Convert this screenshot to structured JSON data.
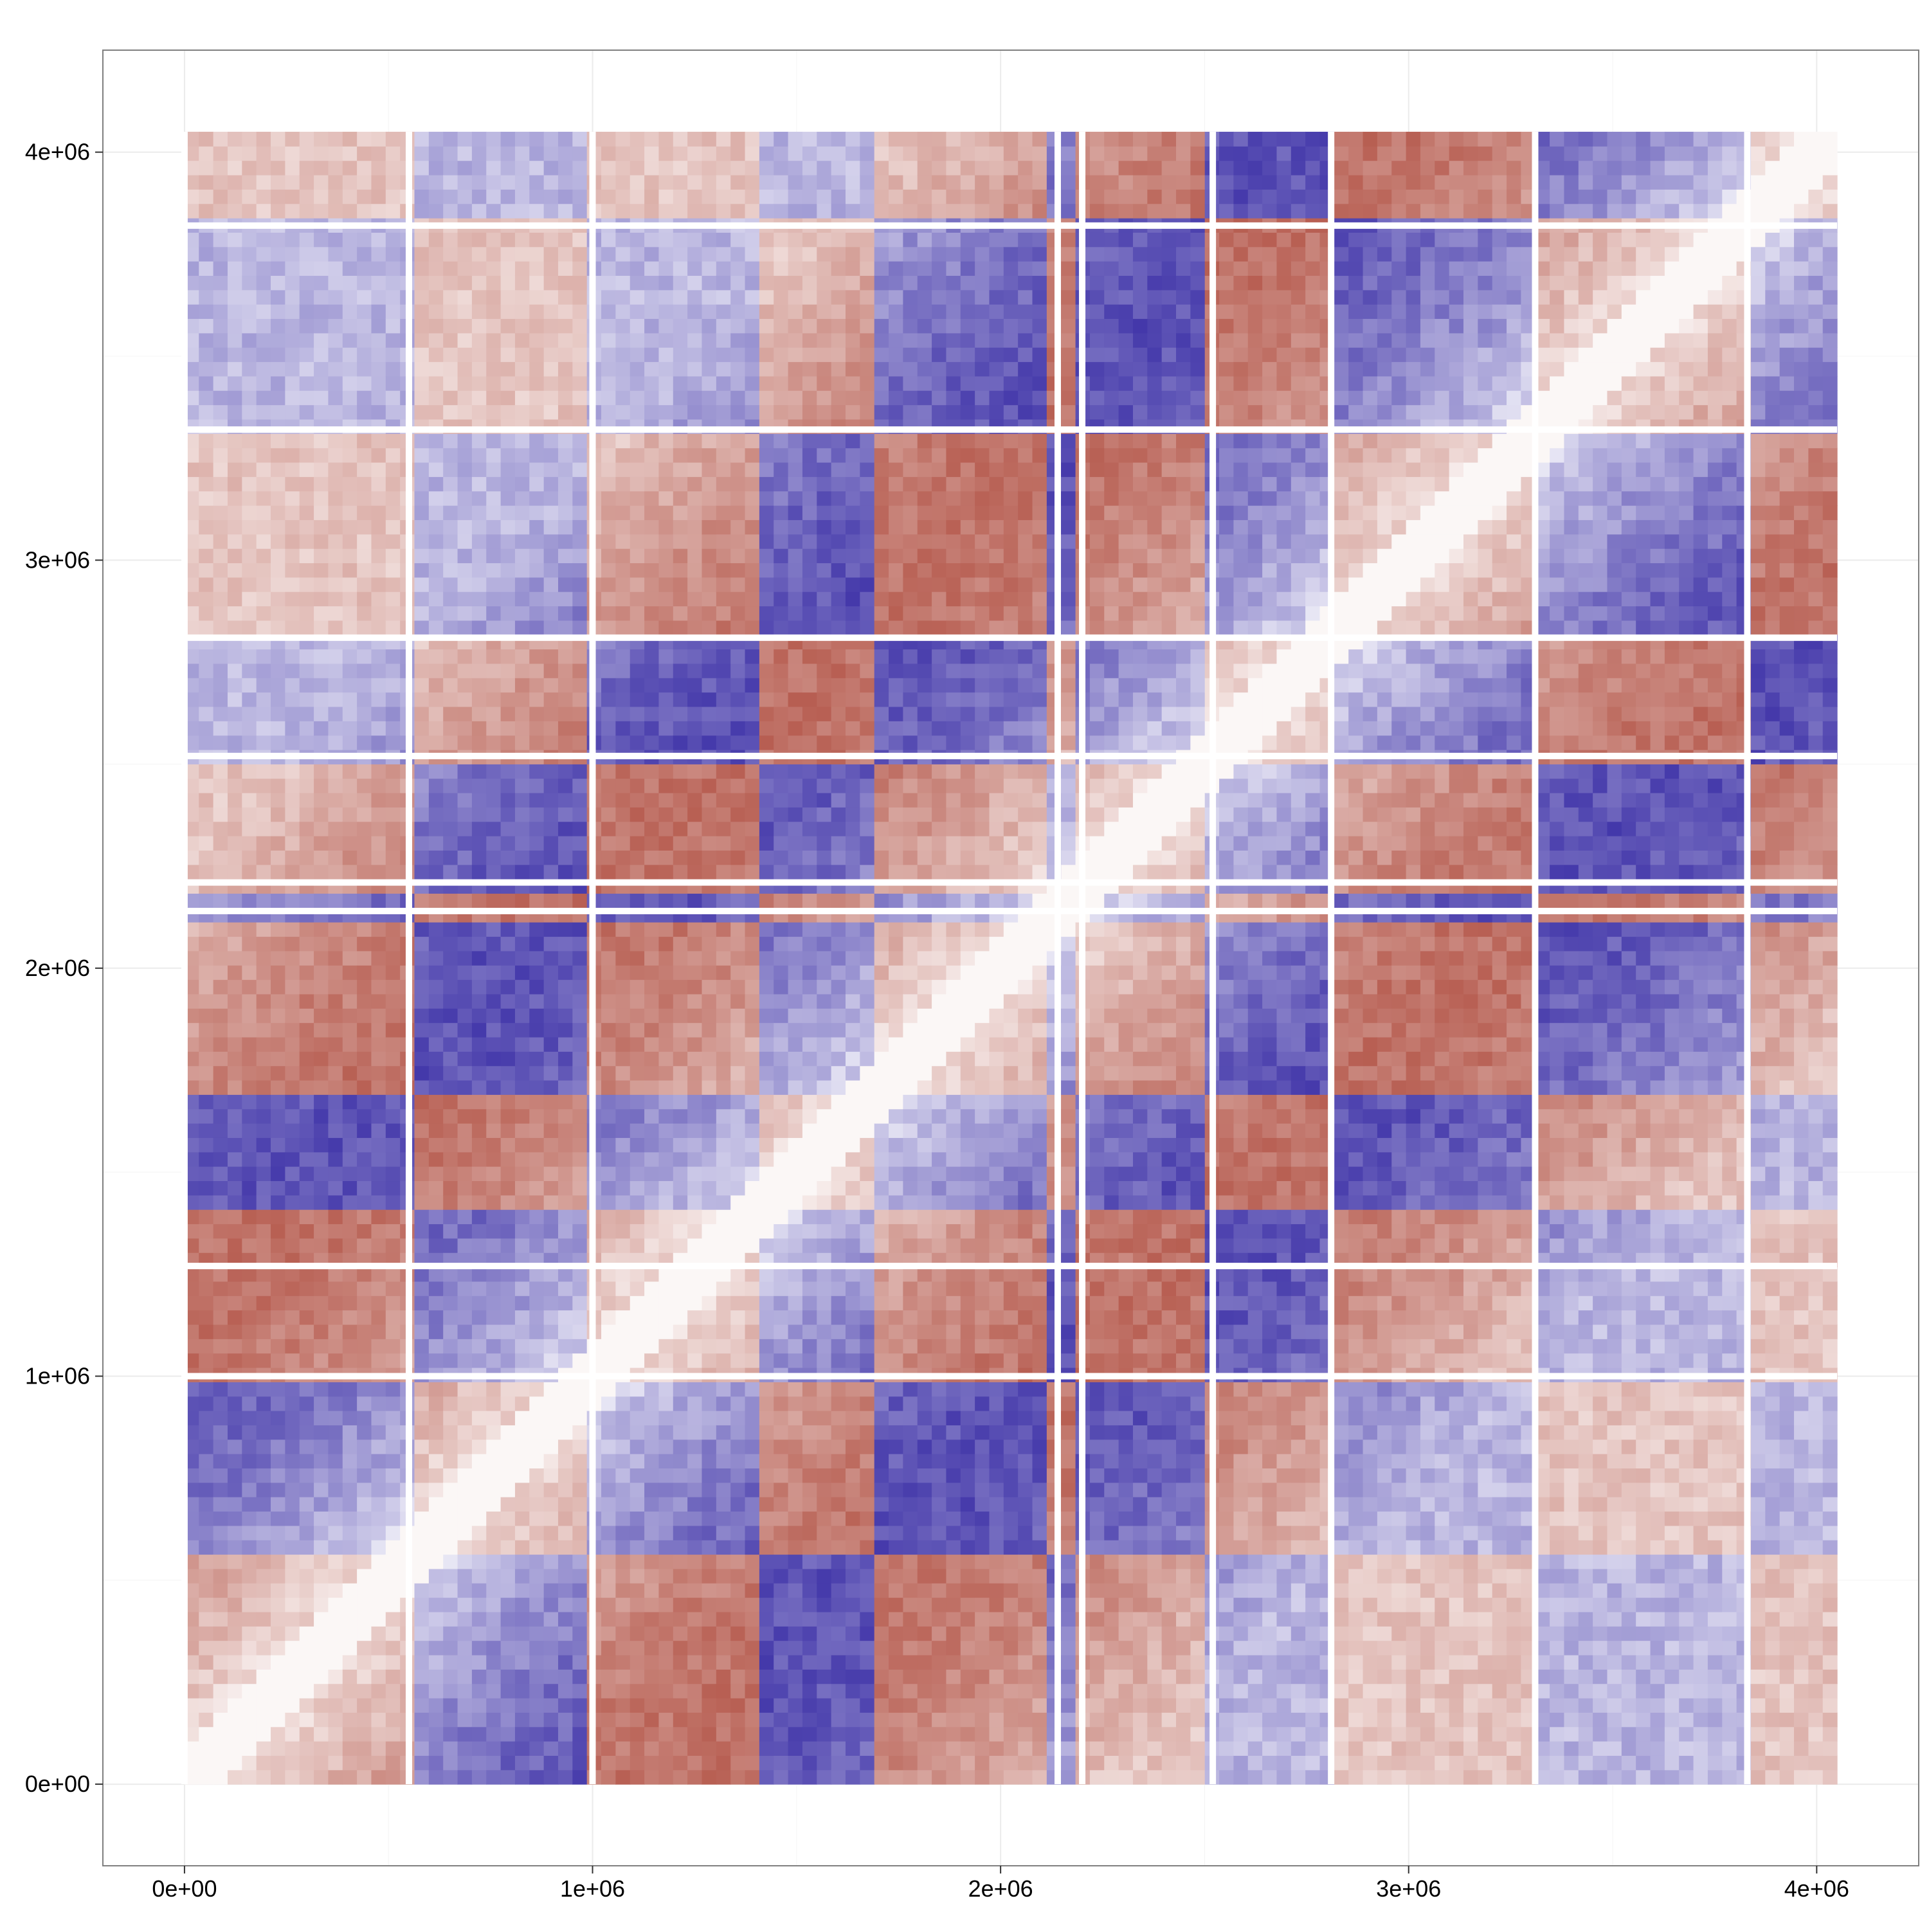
{
  "chart_data": {
    "type": "heatmap",
    "title": "",
    "xlabel": "",
    "ylabel": "",
    "xlim": [
      -200000,
      4250000
    ],
    "ylim": [
      -200000,
      4250000
    ],
    "data_extent": [
      0,
      4050000
    ],
    "x_ticks": [
      {
        "value": 0,
        "label": "0e+00"
      },
      {
        "value": 1000000,
        "label": "1e+06"
      },
      {
        "value": 2000000,
        "label": "2e+06"
      },
      {
        "value": 3000000,
        "label": "3e+06"
      },
      {
        "value": 4000000,
        "label": "4e+06"
      }
    ],
    "y_ticks": [
      {
        "value": 0,
        "label": "0e+00"
      },
      {
        "value": 1000000,
        "label": "1e+06"
      },
      {
        "value": 2000000,
        "label": "2e+06"
      },
      {
        "value": 3000000,
        "label": "3e+06"
      },
      {
        "value": 4000000,
        "label": "4e+06"
      }
    ],
    "grid": true,
    "legend": "none",
    "colors": {
      "low": "#3b2fa6",
      "mid": "#ffffff",
      "high": "#b4574a"
    },
    "domain_boundaries": [
      0,
      550000,
      1000000,
      1420000,
      1700000,
      2130000,
      2200000,
      2500000,
      2800000,
      3310000,
      3840000,
      4050000
    ],
    "gaps": [
      0,
      550000,
      1000000,
      2140000,
      2200000,
      2520000,
      2810000,
      3310000,
      3830000
    ],
    "gaps_y": [
      1000000,
      1270000,
      2140000,
      2210000,
      2520000,
      2810000,
      3320000,
      3820000
    ]
  }
}
